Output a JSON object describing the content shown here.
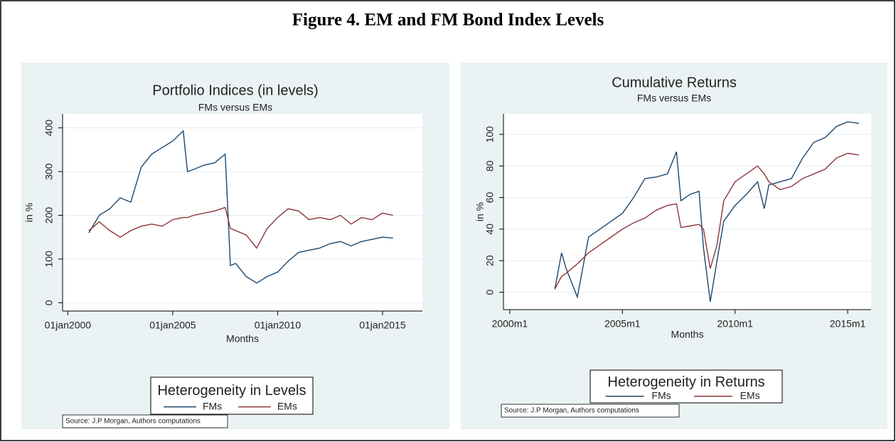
{
  "figure_title": "Figure 4. EM and FM Bond Index Levels",
  "chart_data": [
    {
      "type": "line",
      "title": "Portfolio Indices (in levels)",
      "subtitle": "FMs versus EMs",
      "x_label": "Months",
      "y_label": "in %",
      "x": [
        2001,
        2001.5,
        2002,
        2002.5,
        2003,
        2003.5,
        2004,
        2004.5,
        2005,
        2005.5,
        2005.7,
        2006,
        2006.5,
        2007,
        2007.5,
        2007.75,
        2008,
        2008.5,
        2009,
        2009.5,
        2010,
        2010.5,
        2011,
        2011.5,
        2012,
        2012.5,
        2013,
        2013.5,
        2014,
        2014.5,
        2015,
        2015.5
      ],
      "series": [
        {
          "name": "FMs",
          "color": "#1a476f",
          "values": [
            160,
            200,
            215,
            240,
            230,
            310,
            340,
            355,
            370,
            393,
            300,
            305,
            315,
            320,
            340,
            85,
            90,
            60,
            45,
            60,
            70,
            95,
            115,
            120,
            125,
            135,
            140,
            130,
            140,
            145,
            150,
            148
          ]
        },
        {
          "name": "EMs",
          "color": "#90353b",
          "values": [
            165,
            185,
            165,
            150,
            165,
            175,
            180,
            175,
            190,
            195,
            195,
            200,
            205,
            210,
            218,
            170,
            165,
            155,
            125,
            170,
            195,
            215,
            210,
            190,
            195,
            190,
            200,
            180,
            195,
            190,
            205,
            200
          ]
        }
      ],
      "xlim": [
        1999.75,
        2016.9
      ],
      "xticks": [
        {
          "value": 2000,
          "label": "01jan2000"
        },
        {
          "value": 2005,
          "label": "01jan2005"
        },
        {
          "value": 2010,
          "label": "01jan2010"
        },
        {
          "value": 2015,
          "label": "01jan2015"
        }
      ],
      "ylim": [
        -19,
        432
      ],
      "yticks": [
        0,
        100,
        200,
        300,
        400
      ],
      "grid": true,
      "legend_title": "Heterogeneity in Levels",
      "legend_position": "bottom",
      "note": "Source: J.P Morgan, Authors computations"
    },
    {
      "type": "line",
      "title": "Cumulative Returns",
      "subtitle": "FMs versus EMs",
      "x_label": "Months",
      "y_label": "in %",
      "x": [
        2002,
        2002.3,
        2002.5,
        2003,
        2003.5,
        2004,
        2004.5,
        2005,
        2005.5,
        2006,
        2006.5,
        2007,
        2007.4,
        2007.6,
        2008,
        2008.4,
        2008.6,
        2008.9,
        2009.2,
        2009.5,
        2010,
        2010.5,
        2011,
        2011.3,
        2011.5,
        2012,
        2012.5,
        2013,
        2013.5,
        2014,
        2014.5,
        2015,
        2015.5
      ],
      "series": [
        {
          "name": "FMs",
          "color": "#1a476f",
          "values": [
            2,
            25,
            15,
            -3,
            35,
            40,
            45,
            50,
            60,
            72,
            73,
            75,
            89,
            58,
            62,
            64,
            28,
            -6,
            20,
            45,
            55,
            62,
            70,
            53,
            68,
            70,
            72,
            85,
            95,
            98,
            105,
            108,
            107
          ]
        },
        {
          "name": "EMs",
          "color": "#90353b",
          "values": [
            2,
            10,
            12,
            18,
            25,
            30,
            35,
            40,
            44,
            47,
            52,
            55,
            56,
            41,
            42,
            43,
            40,
            15,
            30,
            58,
            70,
            75,
            80,
            75,
            70,
            65,
            67,
            72,
            75,
            78,
            85,
            88,
            87
          ]
        }
      ],
      "xlim": [
        1999.72,
        2016.04
      ],
      "xticks": [
        {
          "value": 2000,
          "label": "2000m1"
        },
        {
          "value": 2005,
          "label": "2005m1"
        },
        {
          "value": 2010,
          "label": "2010m1"
        },
        {
          "value": 2015,
          "label": "2015m1"
        }
      ],
      "ylim": [
        -11,
        113
      ],
      "yticks": [
        0,
        20,
        40,
        60,
        80,
        100
      ],
      "grid": true,
      "legend_title": "Heterogeneity in Returns",
      "legend_position": "bottom",
      "note": "Source: J.P Morgan, Authors computations"
    }
  ]
}
